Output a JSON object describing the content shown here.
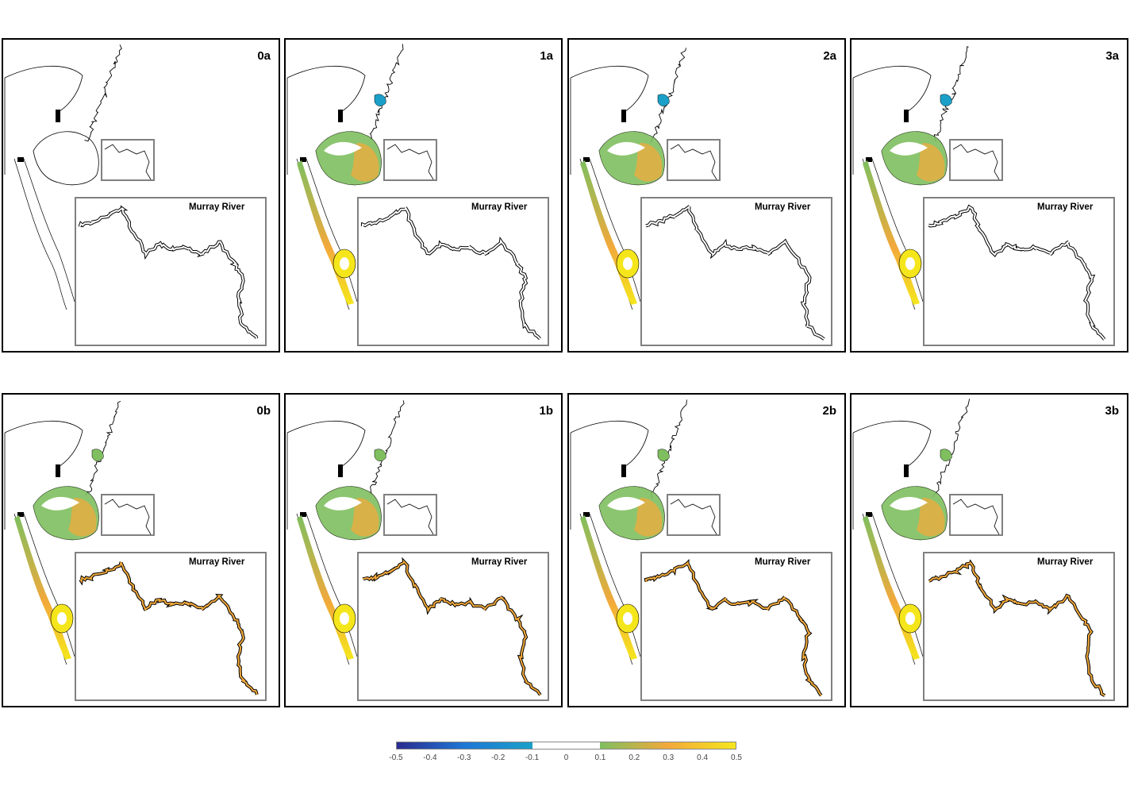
{
  "panels": [
    {
      "label": "0a",
      "inset_label": "Murray River",
      "fill": "none"
    },
    {
      "label": "1a",
      "inset_label": "Murray River",
      "fill": "a"
    },
    {
      "label": "2a",
      "inset_label": "Murray River",
      "fill": "a"
    },
    {
      "label": "3a",
      "inset_label": "Murray River",
      "fill": "a"
    },
    {
      "label": "0b",
      "inset_label": "Murray River",
      "fill": "b"
    },
    {
      "label": "1b",
      "inset_label": "Murray River",
      "fill": "b"
    },
    {
      "label": "2b",
      "inset_label": "Murray River",
      "fill": "b"
    },
    {
      "label": "3b",
      "inset_label": "Murray River",
      "fill": "b"
    }
  ],
  "colorbar": {
    "min": -0.5,
    "max": 0.5,
    "ticks": [
      "-0.5",
      "-0.4",
      "-0.3",
      "-0.2",
      "-0.1",
      "0",
      "0.1",
      "0.2",
      "0.3",
      "0.4",
      "0.5"
    ],
    "colors": {
      "dark_blue": "#2b2b8f",
      "blue": "#1f77d4",
      "cyan": "#1aa0c8",
      "white": "#ffffff",
      "green": "#7fbf5f",
      "orange": "#f2a93b",
      "yellow": "#f5e61c"
    }
  }
}
